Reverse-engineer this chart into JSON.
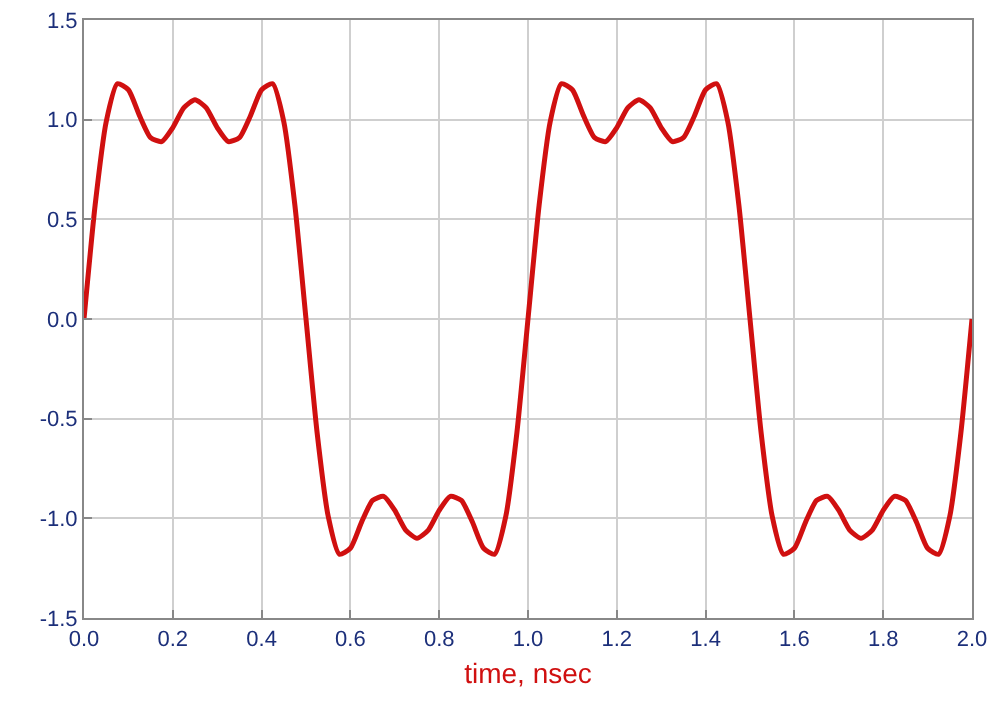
{
  "chart_data": {
    "type": "line",
    "xlabel": "time, nsec",
    "line_style": "solid",
    "marker": "none",
    "grid": true,
    "xlim": [
      0,
      2
    ],
    "ylim": [
      -1.5,
      1.5
    ],
    "xticks": [
      {
        "value": 0,
        "label": "0.0"
      },
      0.2,
      0.4,
      0.6,
      0.8,
      {
        "value": 1,
        "label": "1.0"
      },
      1.2,
      1.4,
      1.6,
      1.8,
      {
        "value": 2,
        "label": "2.0"
      }
    ],
    "yticks": [
      -1.5,
      {
        "value": -1,
        "label": "-1.0"
      },
      -0.5,
      {
        "value": 0,
        "label": "0.0"
      },
      0.5,
      {
        "value": 1,
        "label": "1.0"
      },
      1.5
    ],
    "x": [
      0,
      0.025,
      0.05,
      0.075,
      0.1,
      0.125,
      0.15,
      0.175,
      0.2,
      0.225,
      0.25,
      0.275,
      0.3,
      0.325,
      0.35,
      0.375,
      0.4,
      0.425,
      0.45,
      0.475,
      0.5,
      0.525,
      0.55,
      0.575,
      0.6,
      0.625,
      0.65,
      0.675,
      0.7,
      0.725,
      0.75,
      0.775,
      0.8,
      0.825,
      0.85,
      0.875,
      0.9,
      0.925,
      0.95,
      0.975,
      1,
      1.025,
      1.05,
      1.075,
      1.1,
      1.125,
      1.15,
      1.175,
      1.2,
      1.225,
      1.25,
      1.275,
      1.3,
      1.325,
      1.35,
      1.375,
      1.4,
      1.425,
      1.45,
      1.475,
      1.5,
      1.525,
      1.55,
      1.575,
      1.6,
      1.625,
      1.65,
      1.675,
      1.7,
      1.725,
      1.75,
      1.775,
      1.8,
      1.825,
      1.85,
      1.875,
      1.9,
      1.925,
      1.95,
      1.975,
      2
    ],
    "series": [
      {
        "color": "#d01010",
        "values": [
          0,
          0.57,
          0.99,
          1.18,
          1.15,
          1.02,
          0.91,
          0.89,
          0.96,
          1.06,
          1.1,
          1.06,
          0.96,
          0.89,
          0.91,
          1.02,
          1.15,
          1.18,
          0.99,
          0.57,
          0,
          -0.57,
          -0.99,
          -1.18,
          -1.15,
          -1.02,
          -0.91,
          -0.89,
          -0.96,
          -1.06,
          -1.1,
          -1.06,
          -0.96,
          -0.89,
          -0.91,
          -1.02,
          -1.15,
          -1.18,
          -0.99,
          -0.57,
          0,
          0.57,
          0.99,
          1.18,
          1.15,
          1.02,
          0.91,
          0.89,
          0.96,
          1.06,
          1.1,
          1.06,
          0.96,
          0.89,
          0.91,
          1.02,
          1.15,
          1.18,
          0.99,
          0.57,
          0,
          -0.57,
          -0.99,
          -1.18,
          -1.15,
          -1.02,
          -0.91,
          -0.89,
          -0.96,
          -1.06,
          -1.1,
          -1.06,
          -0.96,
          -0.89,
          -0.91,
          -1.02,
          -1.15,
          -1.18,
          -0.99,
          -0.57,
          0
        ]
      }
    ]
  }
}
